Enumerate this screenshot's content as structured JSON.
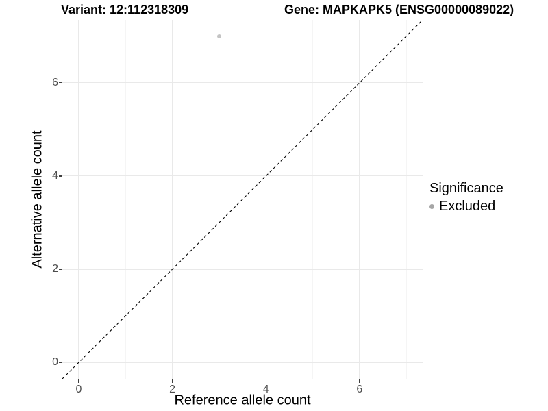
{
  "header": {
    "variant_title": "Variant: 12:112318309",
    "gene_title": "Gene: MAPKAPK5 (ENSG00000089022)"
  },
  "chart_data": {
    "type": "scatter",
    "xlabel": "Reference allele count",
    "ylabel": "Alternative allele count",
    "xlim": [
      -0.35,
      7.35
    ],
    "ylim": [
      -0.35,
      7.35
    ],
    "x_major_ticks": [
      0,
      2,
      4,
      6
    ],
    "y_major_ticks": [
      0,
      2,
      4,
      6
    ],
    "x_minor_gridlines": [
      1,
      3,
      5,
      7
    ],
    "y_minor_gridlines": [
      1,
      3,
      5,
      7
    ],
    "grid": true,
    "points": [
      {
        "x": 3,
        "y": 7,
        "significance": "Excluded"
      }
    ],
    "identity_line": {
      "style": "dashed",
      "slope": 1,
      "intercept": 0
    },
    "legend": {
      "position": "right",
      "title": "Significance",
      "items": [
        {
          "label": "Excluded",
          "color": "#a6a6a6"
        }
      ]
    }
  },
  "colors": {
    "background": "#ffffff",
    "point_fill": "#c4c4c4",
    "legend_dot": "#a6a6a6",
    "axis_line": "#3f3f3f",
    "tick_label": "#4d4d4d",
    "grid_major": "#e9e9e9",
    "grid_minor": "#f5f5f5",
    "identity_line": "#000000"
  }
}
